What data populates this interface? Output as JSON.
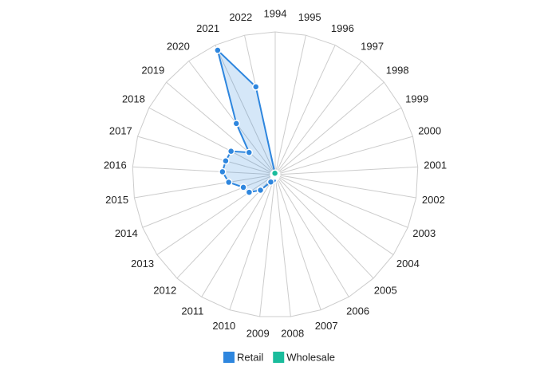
{
  "chart_data": {
    "type": "radar",
    "categories": [
      "1994",
      "1995",
      "1996",
      "1997",
      "1998",
      "1999",
      "2000",
      "2001",
      "2002",
      "2003",
      "2004",
      "2005",
      "2006",
      "2007",
      "2008",
      "2009",
      "2010",
      "2011",
      "2012",
      "2013",
      "2014",
      "2015",
      "2016",
      "2017",
      "2018",
      "2019",
      "2020",
      "2021",
      "2022"
    ],
    "series": [
      {
        "name": "Retail",
        "color": "#2e86de",
        "values": [
          0,
          0,
          0,
          0,
          0,
          0,
          0,
          0,
          0,
          0,
          0,
          0,
          1,
          1,
          2,
          2,
          4,
          6,
          15,
          22,
          24,
          33,
          37,
          36,
          35,
          24,
          45,
          96,
          63
        ]
      },
      {
        "name": "Wholesale",
        "color": "#1abc9c",
        "values": [
          1,
          1,
          1,
          1,
          1,
          1,
          1,
          1,
          1,
          1,
          1,
          1,
          1,
          1,
          1,
          1,
          1,
          1,
          1,
          1,
          1,
          1,
          1,
          1,
          1,
          1,
          1,
          1,
          1
        ]
      }
    ],
    "ylim": [
      0,
      100
    ],
    "legend": "bottom"
  }
}
